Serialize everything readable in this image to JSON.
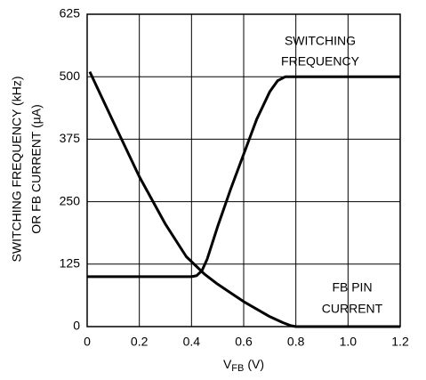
{
  "chart_data": {
    "type": "line",
    "y_label": [
      "SWITCHING FREQUENCY (kHz)",
      "OR FB CURRENT (µA)"
    ],
    "x_label": {
      "main": "V",
      "sub": "FB",
      "unit": "(V)"
    },
    "xlim": [
      0,
      1.2
    ],
    "ylim": [
      0,
      625
    ],
    "xticks": [
      0,
      0.2,
      0.4,
      0.6,
      0.8,
      {
        "value": 1,
        "label": "1.0"
      },
      1.2
    ],
    "yticks": [
      0,
      125,
      250,
      375,
      500,
      625
    ],
    "grid": true,
    "series": [
      {
        "name": "SWITCHING FREQUENCY",
        "color": "#000000",
        "x": [
          0,
          0.1,
          0.2,
          0.3,
          0.4,
          0.42,
          0.44,
          0.46,
          0.5,
          0.55,
          0.6,
          0.65,
          0.7,
          0.73,
          0.76,
          0.8,
          1.0,
          1.2
        ],
        "values": [
          100,
          100,
          100,
          100,
          100,
          102,
          112,
          135,
          200,
          275,
          345,
          415,
          470,
          492,
          500,
          500,
          500,
          500
        ]
      },
      {
        "name": "FB PIN CURRENT",
        "color": "#000000",
        "x": [
          0.01,
          0.1,
          0.2,
          0.3,
          0.38,
          0.42,
          0.45,
          0.5,
          0.6,
          0.7,
          0.75,
          0.78,
          0.8,
          1.0,
          1.2
        ],
        "values": [
          510,
          410,
          300,
          205,
          140,
          120,
          105,
          85,
          50,
          20,
          8,
          2,
          0,
          0,
          0
        ]
      }
    ],
    "annotations": [
      [
        "SWITCHING",
        "FREQUENCY"
      ],
      [
        "FB PIN",
        "CURRENT"
      ]
    ]
  }
}
